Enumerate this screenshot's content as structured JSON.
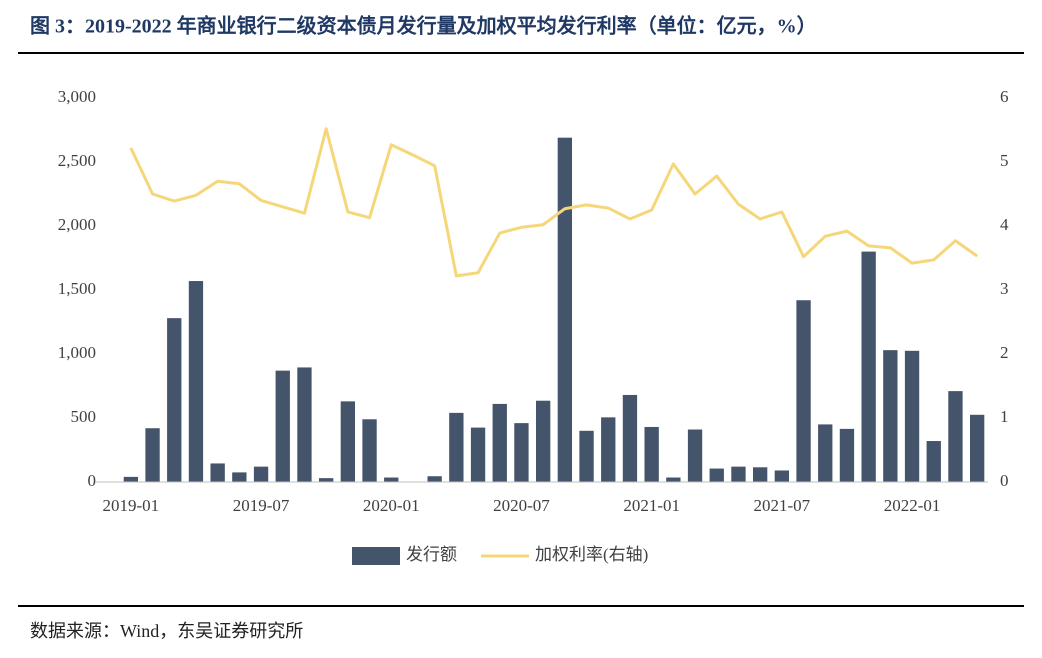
{
  "chart_data": {
    "type": "bar_line",
    "title": "图 3：2019-2022 年商业银行二级资本债月发行量及加权平均发行利率（单位：亿元，%）",
    "source": "数据来源：Wind，东吴证券研究所",
    "categories": [
      "2019-01",
      null,
      null,
      null,
      null,
      null,
      "2019-07",
      null,
      null,
      null,
      null,
      null,
      "2020-01",
      null,
      null,
      null,
      null,
      null,
      "2020-07",
      null,
      null,
      null,
      null,
      null,
      "2021-01",
      null,
      null,
      null,
      null,
      null,
      "2021-07",
      null,
      null,
      null,
      null,
      null,
      "2022-01",
      null,
      null,
      null
    ],
    "series": [
      {
        "name": "发行额",
        "color": "#44546a",
        "values": [
          40,
          420,
          1280,
          1570,
          145,
          75,
          120,
          870,
          895,
          30,
          630,
          490,
          35,
          0,
          45,
          540,
          425,
          610,
          460,
          635,
          2690,
          400,
          505,
          680,
          430,
          35,
          410,
          105,
          120,
          115,
          90,
          1420,
          450,
          415,
          1800,
          1030,
          1025,
          320,
          710,
          525
        ]
      },
      {
        "name": "加权利率(右轴)",
        "color": "#f5d77a",
        "axis": "y2",
        "values": [
          5.22,
          4.5,
          4.39,
          4.48,
          4.7,
          4.66,
          4.4,
          4.3,
          4.2,
          5.52,
          4.22,
          4.13,
          5.27,
          5.11,
          4.94,
          3.22,
          3.27,
          3.89,
          3.98,
          4.02,
          4.27,
          4.33,
          4.28,
          4.11,
          4.25,
          4.97,
          4.5,
          4.78,
          4.34,
          4.11,
          4.22,
          3.52,
          3.84,
          3.92,
          3.69,
          3.66,
          3.42,
          3.47,
          3.77,
          3.53
        ]
      }
    ],
    "ylim": [
      0,
      3000
    ],
    "yticks": [
      0,
      {
        "value": 500,
        "label": "500"
      },
      {
        "value": 1000,
        "label": "1,000"
      },
      {
        "value": 1500,
        "label": "1,500"
      },
      {
        "value": 2000,
        "label": "2,000"
      },
      {
        "value": 2500,
        "label": "2,500"
      },
      {
        "value": 3000,
        "label": "3,000"
      }
    ],
    "y2lim": [
      0,
      6
    ],
    "y2ticks": [
      0,
      1,
      2,
      3,
      4,
      5,
      6
    ],
    "legend": "bottom"
  }
}
